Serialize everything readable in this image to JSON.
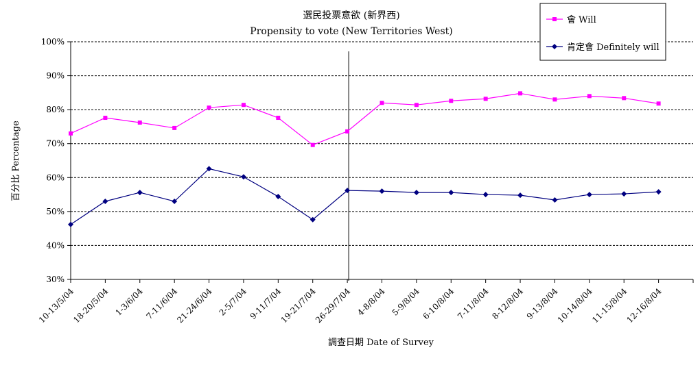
{
  "chart_data": {
    "type": "line",
    "title": "選民投票意欲 (新界西)",
    "subtitle": "Propensity to vote (New Territories West)",
    "xlabel": "調查日期 Date of Survey",
    "ylabel": "百分比 Percentage",
    "categories": [
      "10-13/5/04",
      "18-20/5/04",
      "1-3/6/04",
      "7-11/6/04",
      "21-24/6/04",
      "2-5/7/04",
      "9-11/7/04",
      "19-21/7/04",
      "26-29/7/04",
      "4-8/8/04",
      "5-9/8/04",
      "6-10/8/04",
      "7-11/8/04",
      "8-12/8/04",
      "9-13/8/04",
      "10-14/8/04",
      "11-15/8/04",
      "12-16/8/04"
    ],
    "yticks": [
      "30%",
      "40%",
      "50%",
      "60%",
      "70%",
      "80%",
      "90%",
      "100%"
    ],
    "ylim": [
      30,
      100
    ],
    "grid": "horizontal dashed",
    "legend_position": "top-right",
    "marker_after": "26-29/7/04",
    "series": [
      {
        "name": "會 Will",
        "color": "#ff00ff",
        "marker": "square",
        "values": [
          73.0,
          77.6,
          76.2,
          74.6,
          80.6,
          81.4,
          77.6,
          69.6,
          73.6,
          82.0,
          81.4,
          82.6,
          83.2,
          84.8,
          83.0,
          84.0,
          83.4,
          81.8
        ]
      },
      {
        "name": "肯定會 Definitely will",
        "color": "#000080",
        "marker": "diamond",
        "values": [
          46.2,
          53.0,
          55.6,
          53.0,
          62.6,
          60.2,
          54.4,
          47.6,
          56.2,
          56.0,
          55.6,
          55.6,
          55.0,
          54.8,
          53.4,
          55.0,
          55.2,
          55.8
        ]
      }
    ]
  }
}
